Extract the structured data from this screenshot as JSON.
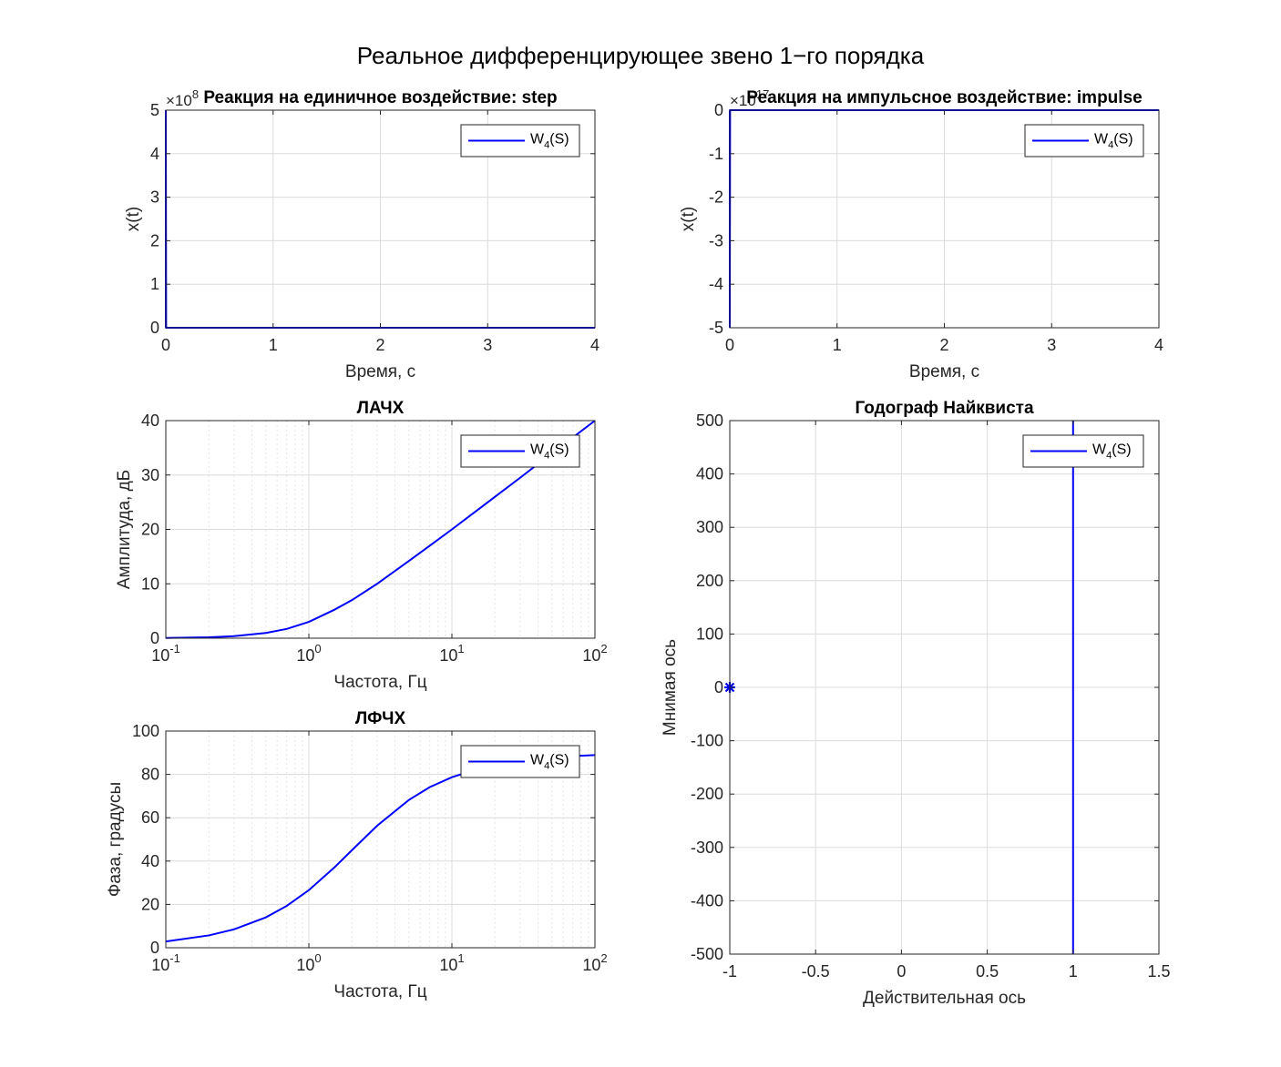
{
  "figure": {
    "suptitle": "Реальное дифференцирующее звено 1−го порядка",
    "line_color": "#0000ff"
  },
  "chart_data": [
    {
      "id": "step",
      "type": "line",
      "title": "Реакция на единичное воздействие: step",
      "xlabel": "Время, с",
      "ylabel": "x(t)",
      "xscale": "linear",
      "xlim": [
        0,
        4
      ],
      "ylim": [
        0,
        5
      ],
      "xticks": [
        0,
        1,
        2,
        3,
        4
      ],
      "xtick_labels": [
        "0",
        "1",
        "2",
        "3",
        "4"
      ],
      "yticks": [
        0,
        1,
        2,
        3,
        4,
        5
      ],
      "ytick_labels": [
        "0",
        "1",
        "2",
        "3",
        "4",
        "5"
      ],
      "y_exponent": {
        "base": "×10",
        "power": "8"
      },
      "grid": true,
      "legend": {
        "position": "top-right",
        "entries": [
          {
            "name": "W",
            "subscript": "4",
            "suffix": "(S)"
          }
        ]
      },
      "series": [
        {
          "name": "W4(S)",
          "x": [
            0,
            0,
            0.003,
            4
          ],
          "y": [
            0,
            5,
            0,
            0
          ]
        }
      ]
    },
    {
      "id": "impulse",
      "type": "line",
      "title": "Реакция на импульсное воздействие: impulse",
      "xlabel": "Время, с",
      "ylabel": "x(t)",
      "xscale": "linear",
      "xlim": [
        0,
        4
      ],
      "ylim": [
        -5,
        0
      ],
      "xticks": [
        0,
        1,
        2,
        3,
        4
      ],
      "xtick_labels": [
        "0",
        "1",
        "2",
        "3",
        "4"
      ],
      "yticks": [
        -5,
        -4,
        -3,
        -2,
        -1,
        0
      ],
      "ytick_labels": [
        "-5",
        "-4",
        "-3",
        "-2",
        "-1",
        "0"
      ],
      "y_exponent": {
        "base": "×10",
        "power": "17"
      },
      "grid": true,
      "legend": {
        "position": "top-right",
        "entries": [
          {
            "name": "W",
            "subscript": "4",
            "suffix": "(S)"
          }
        ]
      },
      "series": [
        {
          "name": "W4(S)",
          "x": [
            0,
            0,
            0.003,
            4
          ],
          "y": [
            0,
            -5,
            0,
            0
          ]
        }
      ]
    },
    {
      "id": "lachx",
      "type": "line",
      "title": "ЛАЧХ",
      "xlabel": "Частота, Гц",
      "ylabel": "Амплитуда, дБ",
      "xscale": "log",
      "xlim": [
        0.1,
        100
      ],
      "ylim": [
        0,
        40
      ],
      "xticks": [
        0.1,
        1,
        10,
        100
      ],
      "xtick_labels": [
        {
          "base": "10",
          "power": "-1"
        },
        {
          "base": "10",
          "power": "0"
        },
        {
          "base": "10",
          "power": "1"
        },
        {
          "base": "10",
          "power": "2"
        }
      ],
      "yticks": [
        0,
        10,
        20,
        30,
        40
      ],
      "ytick_labels": [
        "0",
        "10",
        "20",
        "30",
        "40"
      ],
      "grid": true,
      "legend": {
        "position": "top-right",
        "entries": [
          {
            "name": "W",
            "subscript": "4",
            "suffix": "(S)"
          }
        ]
      },
      "series": [
        {
          "name": "W4(S)",
          "x": [
            0.1,
            0.2,
            0.3,
            0.5,
            0.7,
            1,
            1.5,
            2,
            3,
            5,
            7,
            10,
            15,
            20,
            30,
            50,
            70,
            100
          ],
          "y": [
            0.04,
            0.17,
            0.37,
            0.97,
            1.7,
            3.0,
            5.2,
            7.0,
            10.0,
            14.2,
            17.0,
            20.0,
            23.5,
            26.0,
            29.5,
            34.0,
            36.9,
            40.0
          ]
        }
      ]
    },
    {
      "id": "lfchx",
      "type": "line",
      "title": "ЛФЧХ",
      "xlabel": "Частота, Гц",
      "ylabel": "Фаза, градусы",
      "xscale": "log",
      "xlim": [
        0.1,
        100
      ],
      "ylim": [
        0,
        100
      ],
      "xticks": [
        0.1,
        1,
        10,
        100
      ],
      "xtick_labels": [
        {
          "base": "10",
          "power": "-1"
        },
        {
          "base": "10",
          "power": "0"
        },
        {
          "base": "10",
          "power": "1"
        },
        {
          "base": "10",
          "power": "2"
        }
      ],
      "yticks": [
        0,
        20,
        40,
        60,
        80,
        100
      ],
      "ytick_labels": [
        "0",
        "20",
        "40",
        "60",
        "80",
        "100"
      ],
      "grid": true,
      "legend": {
        "position": "top-right",
        "entries": [
          {
            "name": "W",
            "subscript": "4",
            "suffix": "(S)"
          }
        ]
      },
      "series": [
        {
          "name": "W4(S)",
          "x": [
            0.1,
            0.2,
            0.3,
            0.5,
            0.7,
            1,
            1.5,
            2,
            3,
            5,
            7,
            10,
            15,
            20,
            30,
            50,
            70,
            100
          ],
          "y": [
            2.9,
            5.7,
            8.5,
            14.0,
            19.3,
            26.6,
            36.9,
            45.0,
            56.3,
            68.2,
            74.1,
            78.7,
            82.4,
            84.3,
            86.2,
            87.7,
            88.4,
            88.9
          ]
        }
      ]
    },
    {
      "id": "nyquist",
      "type": "line",
      "title": "Годограф Найквиста",
      "xlabel": "Действительная ось",
      "ylabel": "Мнимая ось",
      "xscale": "linear",
      "xlim": [
        -1,
        1.5
      ],
      "ylim": [
        -500,
        500
      ],
      "xticks": [
        -1,
        -0.5,
        0,
        0.5,
        1,
        1.5
      ],
      "xtick_labels": [
        "-1",
        "-0.5",
        "0",
        "0.5",
        "1",
        "1.5"
      ],
      "yticks": [
        -500,
        -400,
        -300,
        -200,
        -100,
        0,
        100,
        200,
        300,
        400,
        500
      ],
      "ytick_labels": [
        "-500",
        "-400",
        "-300",
        "-200",
        "-100",
        "0",
        "100",
        "200",
        "300",
        "400",
        "500"
      ],
      "grid": true,
      "legend": {
        "position": "top-right",
        "entries": [
          {
            "name": "W",
            "subscript": "4",
            "suffix": "(S)"
          }
        ]
      },
      "series": [
        {
          "name": "W4(S)",
          "x": [
            1,
            1
          ],
          "y": [
            -500,
            500
          ]
        }
      ],
      "markers": [
        {
          "x": -1,
          "y": 0,
          "symbol": "*"
        }
      ]
    }
  ]
}
